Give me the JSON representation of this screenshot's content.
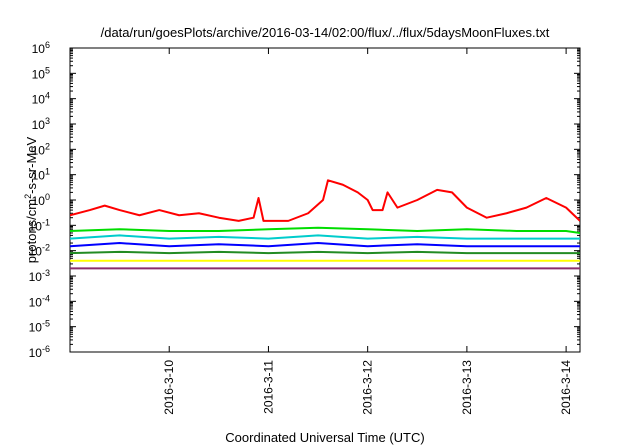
{
  "chart_data": {
    "type": "line",
    "title": "/data/run/goesPlots/archive/2016-03-14/02:00/flux/../flux/5daysMoonFluxes.txt",
    "xlabel": "Coordinated Universal Time (UTC)",
    "ylabel": {
      "base": "protons/cm",
      "sup": "2",
      "rest": "-s-sr-MeV"
    },
    "yscale": "log",
    "ylim_exp": [
      -6,
      6
    ],
    "y_ticks": [
      {
        "base": "10",
        "exp": "-6"
      },
      {
        "base": "10",
        "exp": "-5"
      },
      {
        "base": "10",
        "exp": "-4"
      },
      {
        "base": "10",
        "exp": "-3"
      },
      {
        "base": "10",
        "exp": "-2"
      },
      {
        "base": "10",
        "exp": "-1"
      },
      {
        "base": "10",
        "exp": "0"
      },
      {
        "base": "10",
        "exp": "1"
      },
      {
        "base": "10",
        "exp": "2"
      },
      {
        "base": "10",
        "exp": "3"
      },
      {
        "base": "10",
        "exp": "4"
      },
      {
        "base": "10",
        "exp": "5"
      },
      {
        "base": "10",
        "exp": "6"
      }
    ],
    "xlim": [
      0,
      5.14
    ],
    "x_ticks": [
      {
        "x": 1,
        "label": "2016-3-10"
      },
      {
        "x": 2,
        "label": "2016-3-11"
      },
      {
        "x": 3,
        "label": "2016-3-12"
      },
      {
        "x": 4,
        "label": "2016-3-13"
      },
      {
        "x": 5,
        "label": "2016-3-14"
      }
    ],
    "grid": false,
    "legend": "none",
    "series": [
      {
        "color": "#ff0000",
        "points": [
          [
            0,
            0.25
          ],
          [
            0.2,
            0.4
          ],
          [
            0.35,
            0.6
          ],
          [
            0.5,
            0.4
          ],
          [
            0.7,
            0.25
          ],
          [
            0.9,
            0.4
          ],
          [
            1.1,
            0.25
          ],
          [
            1.3,
            0.3
          ],
          [
            1.5,
            0.2
          ],
          [
            1.7,
            0.15
          ],
          [
            1.85,
            0.2
          ],
          [
            1.9,
            1.2
          ],
          [
            1.95,
            0.15
          ],
          [
            2.2,
            0.15
          ],
          [
            2.4,
            0.3
          ],
          [
            2.55,
            1
          ],
          [
            2.6,
            6
          ],
          [
            2.75,
            4
          ],
          [
            2.9,
            2
          ],
          [
            3,
            1
          ],
          [
            3.05,
            0.4
          ],
          [
            3.15,
            0.4
          ],
          [
            3.2,
            2
          ],
          [
            3.3,
            0.5
          ],
          [
            3.5,
            1
          ],
          [
            3.7,
            2.5
          ],
          [
            3.85,
            2
          ],
          [
            4,
            0.5
          ],
          [
            4.2,
            0.2
          ],
          [
            4.4,
            0.3
          ],
          [
            4.6,
            0.5
          ],
          [
            4.8,
            1.2
          ],
          [
            5.0,
            0.5
          ],
          [
            5.14,
            0.15
          ]
        ]
      },
      {
        "color": "#00dd00",
        "points": [
          [
            0,
            0.06
          ],
          [
            0.5,
            0.07
          ],
          [
            1,
            0.06
          ],
          [
            1.5,
            0.06
          ],
          [
            2,
            0.07
          ],
          [
            2.5,
            0.08
          ],
          [
            3,
            0.07
          ],
          [
            3.5,
            0.06
          ],
          [
            4,
            0.07
          ],
          [
            4.5,
            0.06
          ],
          [
            5,
            0.06
          ],
          [
            5.14,
            0.05
          ]
        ]
      },
      {
        "color": "#00cccc",
        "points": [
          [
            0,
            0.03
          ],
          [
            0.5,
            0.04
          ],
          [
            1,
            0.03
          ],
          [
            1.5,
            0.035
          ],
          [
            2,
            0.03
          ],
          [
            2.5,
            0.04
          ],
          [
            3,
            0.03
          ],
          [
            3.5,
            0.035
          ],
          [
            4,
            0.03
          ],
          [
            4.5,
            0.03
          ],
          [
            5,
            0.03
          ],
          [
            5.14,
            0.03
          ]
        ]
      },
      {
        "color": "#0000ff",
        "points": [
          [
            0,
            0.015
          ],
          [
            0.5,
            0.02
          ],
          [
            1,
            0.015
          ],
          [
            1.5,
            0.018
          ],
          [
            2,
            0.015
          ],
          [
            2.5,
            0.02
          ],
          [
            3,
            0.015
          ],
          [
            3.5,
            0.018
          ],
          [
            4,
            0.015
          ],
          [
            4.5,
            0.015
          ],
          [
            5,
            0.015
          ],
          [
            5.14,
            0.015
          ]
        ]
      },
      {
        "color": "#228b22",
        "points": [
          [
            0,
            0.008
          ],
          [
            0.5,
            0.009
          ],
          [
            1,
            0.008
          ],
          [
            1.5,
            0.009
          ],
          [
            2,
            0.008
          ],
          [
            2.5,
            0.009
          ],
          [
            3,
            0.008
          ],
          [
            3.5,
            0.009
          ],
          [
            4,
            0.008
          ],
          [
            4.5,
            0.008
          ],
          [
            5,
            0.008
          ],
          [
            5.14,
            0.008
          ]
        ]
      },
      {
        "color": "#ffff00",
        "points": [
          [
            0,
            0.004
          ],
          [
            0.5,
            0.004
          ],
          [
            1,
            0.004
          ],
          [
            1.5,
            0.004
          ],
          [
            2,
            0.004
          ],
          [
            2.5,
            0.004
          ],
          [
            3,
            0.004
          ],
          [
            3.5,
            0.004
          ],
          [
            4,
            0.004
          ],
          [
            4.5,
            0.004
          ],
          [
            5,
            0.004
          ],
          [
            5.14,
            0.004
          ]
        ]
      },
      {
        "color": "#8b2f6b",
        "points": [
          [
            0,
            0.002
          ],
          [
            0.5,
            0.002
          ],
          [
            1,
            0.002
          ],
          [
            1.5,
            0.002
          ],
          [
            2,
            0.002
          ],
          [
            2.5,
            0.002
          ],
          [
            3,
            0.002
          ],
          [
            3.5,
            0.002
          ],
          [
            4,
            0.002
          ],
          [
            4.5,
            0.002
          ],
          [
            5,
            0.002
          ],
          [
            5.14,
            0.002
          ]
        ]
      }
    ]
  }
}
